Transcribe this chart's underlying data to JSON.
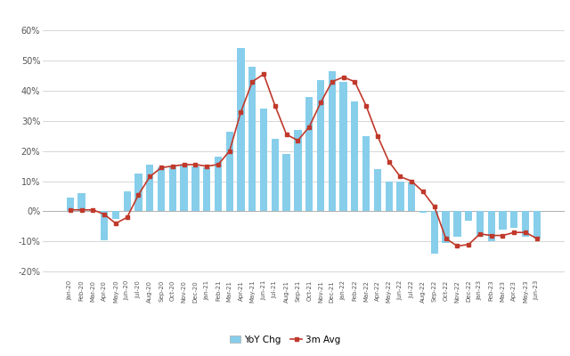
{
  "labels": [
    "Jan-20",
    "Feb-20",
    "Mar-20",
    "Apr-20",
    "May-20",
    "Jun-20",
    "Jul-20",
    "Aug-20",
    "Sep-20",
    "Oct-20",
    "Nov-20",
    "Dec-20",
    "Jan-21",
    "Feb-21",
    "Mar-21",
    "Apr-21",
    "May-21",
    "Jun-21",
    "Jul-21",
    "Aug-21",
    "Sep-21",
    "Oct-21",
    "Nov-21",
    "Dec-21",
    "Jan-22",
    "Feb-22",
    "Mar-22",
    "Apr-22",
    "May-22",
    "Jun-22",
    "Jul-22",
    "Aug-22",
    "Sep-22",
    "Oct-22",
    "Nov-22",
    "Dec-22",
    "Jan-23",
    "Feb-23",
    "Mar-23",
    "Apr-23",
    "May-23",
    "Jun-23"
  ],
  "yoy_chg": [
    4.5,
    6.0,
    0.5,
    -9.5,
    -2.5,
    6.5,
    12.5,
    15.5,
    14.5,
    15.0,
    15.5,
    15.0,
    14.5,
    18.0,
    26.5,
    54.0,
    48.0,
    34.0,
    24.0,
    19.0,
    27.0,
    38.0,
    43.5,
    46.5,
    43.0,
    36.5,
    25.0,
    14.0,
    10.0,
    10.0,
    9.5,
    -0.5,
    -14.0,
    -10.5,
    -8.5,
    -3.0,
    -8.5,
    -10.0,
    -6.0,
    -5.5,
    -8.5,
    -9.0
  ],
  "avg_3m": [
    0.5,
    0.5,
    0.5,
    -1.0,
    -4.0,
    -2.0,
    5.5,
    11.5,
    14.5,
    15.0,
    15.5,
    15.5,
    15.0,
    15.5,
    20.0,
    33.0,
    43.0,
    45.5,
    35.0,
    25.5,
    23.5,
    28.0,
    36.0,
    43.0,
    44.5,
    43.0,
    35.0,
    25.0,
    16.5,
    11.5,
    10.0,
    6.5,
    1.5,
    -9.0,
    -11.5,
    -11.0,
    -7.5,
    -8.0,
    -8.0,
    -7.0,
    -7.0,
    -9.0
  ],
  "bar_color": "#87CEEB",
  "line_color": "#C0392B",
  "yticks": [
    -20,
    -10,
    0,
    10,
    20,
    30,
    40,
    50,
    60
  ],
  "ylim": [
    -22,
    63
  ],
  "background_color": "#FFFFFF",
  "grid_color": "#D0D0D0",
  "legend_yoy_label": "YoY Chg",
  "legend_avg_label": "3m Avg"
}
